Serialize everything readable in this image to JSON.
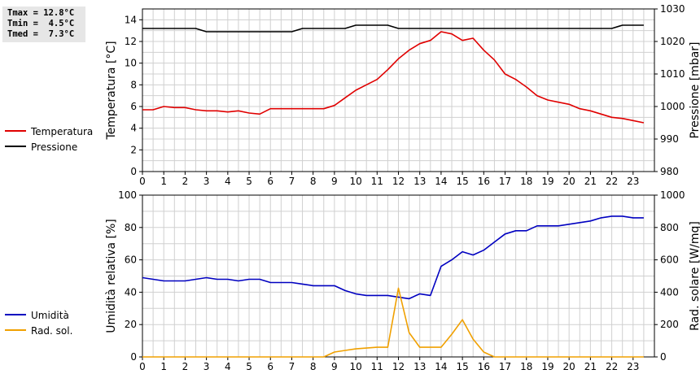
{
  "stats": {
    "lines": [
      "Tmax = 12.8°C",
      "Tmin =  4.5°C",
      "Tmed =  7.3°C"
    ]
  },
  "chart_data": [
    {
      "type": "line",
      "xlim": [
        0,
        24
      ],
      "x_ticks": [
        0,
        1,
        2,
        3,
        4,
        5,
        6,
        7,
        8,
        9,
        10,
        11,
        12,
        13,
        14,
        15,
        16,
        17,
        18,
        19,
        20,
        21,
        22,
        23
      ],
      "ylabel": "Temperatura [°C]",
      "ylim": [
        0,
        15
      ],
      "y_ticks": [
        0,
        2,
        4,
        6,
        8,
        10,
        12,
        14
      ],
      "y2label": "Pressione [mbar]",
      "y2lim": [
        980,
        1030
      ],
      "y2_ticks": [
        980,
        990,
        1000,
        1010,
        1020,
        1030
      ],
      "grid": true,
      "legend_position": "left",
      "series": [
        {
          "name": "Temperatura",
          "axis": "left",
          "color": "#e00000",
          "x": [
            0,
            0.5,
            1,
            1.5,
            2,
            2.5,
            3,
            3.5,
            4,
            4.5,
            5,
            5.5,
            6,
            6.5,
            7,
            7.5,
            8,
            8.5,
            9,
            9.5,
            10,
            10.5,
            11,
            11.5,
            12,
            12.5,
            13,
            13.5,
            14,
            14.5,
            15,
            15.5,
            16,
            16.5,
            17,
            17.5,
            18,
            18.5,
            19,
            19.5,
            20,
            20.5,
            21,
            21.5,
            22,
            22.5,
            23,
            23.5
          ],
          "y": [
            5.7,
            5.7,
            6.0,
            5.9,
            5.9,
            5.7,
            5.6,
            5.6,
            5.5,
            5.6,
            5.4,
            5.3,
            5.8,
            5.8,
            5.8,
            5.8,
            5.8,
            5.8,
            6.1,
            6.8,
            7.5,
            8.0,
            8.5,
            9.4,
            10.4,
            11.2,
            11.8,
            12.1,
            12.9,
            12.7,
            12.1,
            12.3,
            11.2,
            10.3,
            9.0,
            8.5,
            7.8,
            7.0,
            6.6,
            6.4,
            6.2,
            5.8,
            5.6,
            5.3,
            5.0,
            4.9,
            4.7,
            4.5
          ]
        },
        {
          "name": "Pressione",
          "axis": "right",
          "color": "#000000",
          "x": [
            0,
            0.5,
            1,
            1.5,
            2,
            2.5,
            3,
            3.5,
            4,
            4.5,
            5,
            5.5,
            6,
            6.5,
            7,
            7.5,
            8,
            8.5,
            9,
            9.5,
            10,
            10.5,
            11,
            11.5,
            12,
            12.5,
            13,
            13.5,
            14,
            14.5,
            15,
            15.5,
            16,
            16.5,
            17,
            17.5,
            18,
            18.5,
            19,
            19.5,
            20,
            20.5,
            21,
            21.5,
            22,
            22.5,
            23,
            23.5
          ],
          "y": [
            1024,
            1024,
            1024,
            1024,
            1024,
            1024,
            1023,
            1023,
            1023,
            1023,
            1023,
            1023,
            1023,
            1023,
            1023,
            1024,
            1024,
            1024,
            1024,
            1024,
            1025,
            1025,
            1025,
            1025,
            1024,
            1024,
            1024,
            1024,
            1024,
            1024,
            1024,
            1024,
            1024,
            1024,
            1024,
            1024,
            1024,
            1024,
            1024,
            1024,
            1024,
            1024,
            1024,
            1024,
            1024,
            1025,
            1025,
            1025
          ]
        }
      ]
    },
    {
      "type": "line",
      "xlim": [
        0,
        24
      ],
      "x_ticks": [
        0,
        1,
        2,
        3,
        4,
        5,
        6,
        7,
        8,
        9,
        10,
        11,
        12,
        13,
        14,
        15,
        16,
        17,
        18,
        19,
        20,
        21,
        22,
        23
      ],
      "ylabel": "Umidità relativa [%]",
      "ylim": [
        0,
        100
      ],
      "y_ticks": [
        0,
        20,
        40,
        60,
        80,
        100
      ],
      "y2label": "Rad. solare [W/mq]",
      "y2lim": [
        0,
        1000
      ],
      "y2_ticks": [
        0,
        200,
        400,
        600,
        800,
        1000
      ],
      "grid": true,
      "legend_position": "left",
      "series": [
        {
          "name": "Umidità",
          "axis": "left",
          "color": "#0000c0",
          "x": [
            0,
            0.5,
            1,
            1.5,
            2,
            2.5,
            3,
            3.5,
            4,
            4.5,
            5,
            5.5,
            6,
            6.5,
            7,
            7.5,
            8,
            8.5,
            9,
            9.5,
            10,
            10.5,
            11,
            11.5,
            12,
            12.5,
            13,
            13.5,
            14,
            14.5,
            15,
            15.5,
            16,
            16.5,
            17,
            17.5,
            18,
            18.5,
            19,
            19.5,
            20,
            20.5,
            21,
            21.5,
            22,
            22.5,
            23,
            23.5
          ],
          "y": [
            49,
            48,
            47,
            47,
            47,
            48,
            49,
            48,
            48,
            47,
            48,
            48,
            46,
            46,
            46,
            45,
            44,
            44,
            44,
            41,
            39,
            38,
            38,
            38,
            37,
            36,
            39,
            38,
            56,
            60,
            65,
            63,
            66,
            71,
            76,
            78,
            78,
            81,
            81,
            81,
            82,
            83,
            84,
            86,
            87,
            87,
            86,
            86
          ]
        },
        {
          "name": "Rad. sol.",
          "axis": "right",
          "color": "#f0a000",
          "x": [
            0,
            0.5,
            1,
            1.5,
            2,
            2.5,
            3,
            3.5,
            4,
            4.5,
            5,
            5.5,
            6,
            6.5,
            7,
            7.5,
            8,
            8.5,
            9,
            9.5,
            10,
            10.5,
            11,
            11.5,
            12,
            12.5,
            13,
            13.5,
            14,
            14.5,
            15,
            15.5,
            16,
            16.5,
            17,
            17.5,
            18,
            18.5,
            19,
            19.5,
            20,
            20.5,
            21,
            21.5,
            22,
            22.5,
            23,
            23.5
          ],
          "y": [
            0,
            0,
            0,
            0,
            0,
            0,
            0,
            0,
            0,
            0,
            0,
            0,
            0,
            0,
            0,
            0,
            0,
            0,
            30,
            40,
            50,
            55,
            60,
            60,
            425,
            150,
            60,
            60,
            60,
            140,
            230,
            110,
            30,
            0,
            0,
            0,
            0,
            0,
            0,
            0,
            0,
            0,
            0,
            0,
            0,
            0,
            0,
            0
          ]
        }
      ]
    }
  ]
}
